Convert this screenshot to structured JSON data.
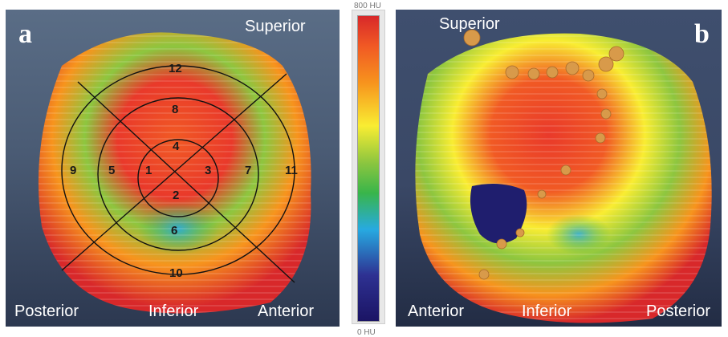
{
  "panel_a": {
    "letter": "a",
    "superior": "Superior",
    "posterior": "Posterior",
    "inferior": "Inferior",
    "anterior": "Anterior",
    "segments": [
      "12",
      "8",
      "4",
      "9",
      "5",
      "1",
      "3",
      "7",
      "11",
      "2",
      "6",
      "10"
    ]
  },
  "panel_b": {
    "letter": "b",
    "superior": "Superior",
    "anterior": "Anterior",
    "inferior": "Inferior",
    "posterior": "Posterior"
  },
  "colorbar": {
    "top_label": "800 HU",
    "bottom_label": "0 HU",
    "stops": [
      "#d8282a",
      "#f15a24",
      "#f7941d",
      "#f9ed32",
      "#8dc63f",
      "#39b54a",
      "#27aae1",
      "#2e3192",
      "#1b1464"
    ]
  }
}
